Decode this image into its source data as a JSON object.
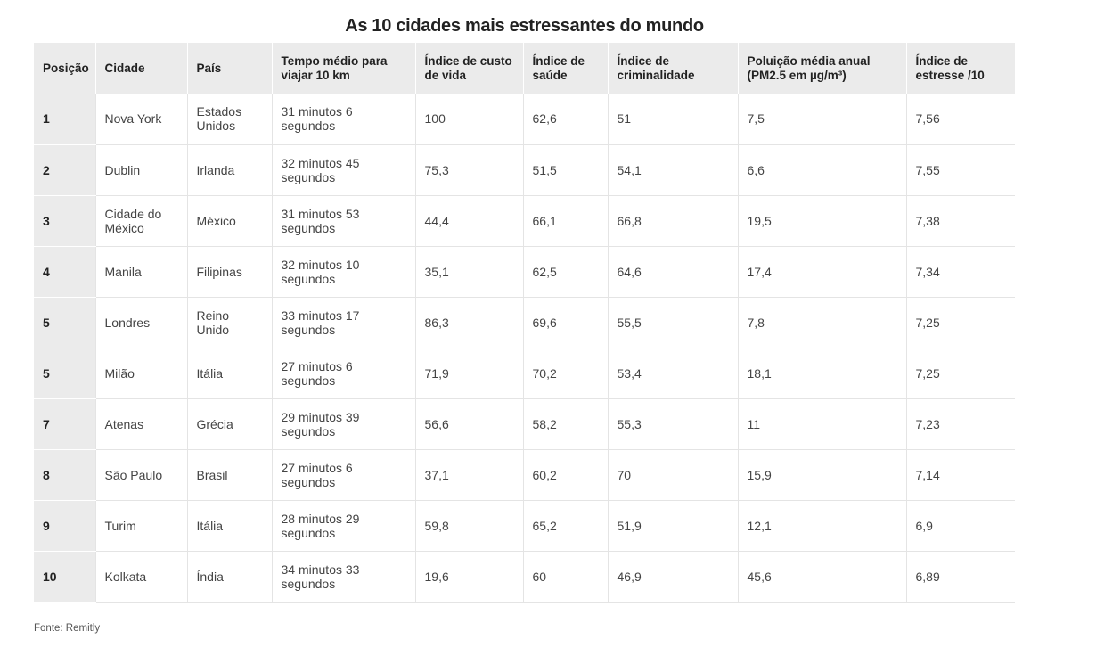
{
  "title": "As 10 cidades mais estressantes do mundo",
  "table": {
    "headers": [
      "Posição",
      "Cidade",
      "País",
      "Tempo médio para viajar 10 km",
      "Índice de custo de vida",
      "Índice de saúde",
      "Índice de criminalidade",
      "Poluição média anual (PM2.5 em µg/m³)",
      "Índice de estresse /10"
    ],
    "rows": [
      [
        "1",
        "Nova York",
        "Estados Unidos",
        "31 minutos 6 segundos",
        "100",
        "62,6",
        "51",
        "7,5",
        "7,56"
      ],
      [
        "2",
        "Dublin",
        "Irlanda",
        "32 minutos 45 segundos",
        "75,3",
        "51,5",
        "54,1",
        "6,6",
        "7,55"
      ],
      [
        "3",
        "Cidade do México",
        "México",
        "31 minutos 53 segundos",
        "44,4",
        "66,1",
        "66,8",
        "19,5",
        "7,38"
      ],
      [
        "4",
        "Manila",
        "Filipinas",
        "32 minutos 10 segundos",
        "35,1",
        "62,5",
        "64,6",
        "17,4",
        "7,34"
      ],
      [
        "5",
        "Londres",
        "Reino Unido",
        "33 minutos 17 segundos",
        "86,3",
        "69,6",
        "55,5",
        "7,8",
        "7,25"
      ],
      [
        "5",
        "Milão",
        "Itália",
        "27 minutos 6 segundos",
        "71,9",
        "70,2",
        "53,4",
        "18,1",
        "7,25"
      ],
      [
        "7",
        "Atenas",
        "Grécia",
        "29 minutos 39 segundos",
        "56,6",
        "58,2",
        "55,3",
        "11",
        "7,23"
      ],
      [
        "8",
        "São Paulo",
        "Brasil",
        "27 minutos 6 segundos",
        "37,1",
        "60,2",
        "70",
        "15,9",
        "7,14"
      ],
      [
        "9",
        "Turim",
        "Itália",
        "28 minutos 29 segundos",
        "59,8",
        "65,2",
        "51,9",
        "12,1",
        "6,9"
      ],
      [
        "10",
        "Kolkata",
        "Índia",
        "34 minutos 33 segundos",
        "19,6",
        "60",
        "46,9",
        "45,6",
        "6,89"
      ]
    ]
  },
  "source": "Fonte: Remitly"
}
